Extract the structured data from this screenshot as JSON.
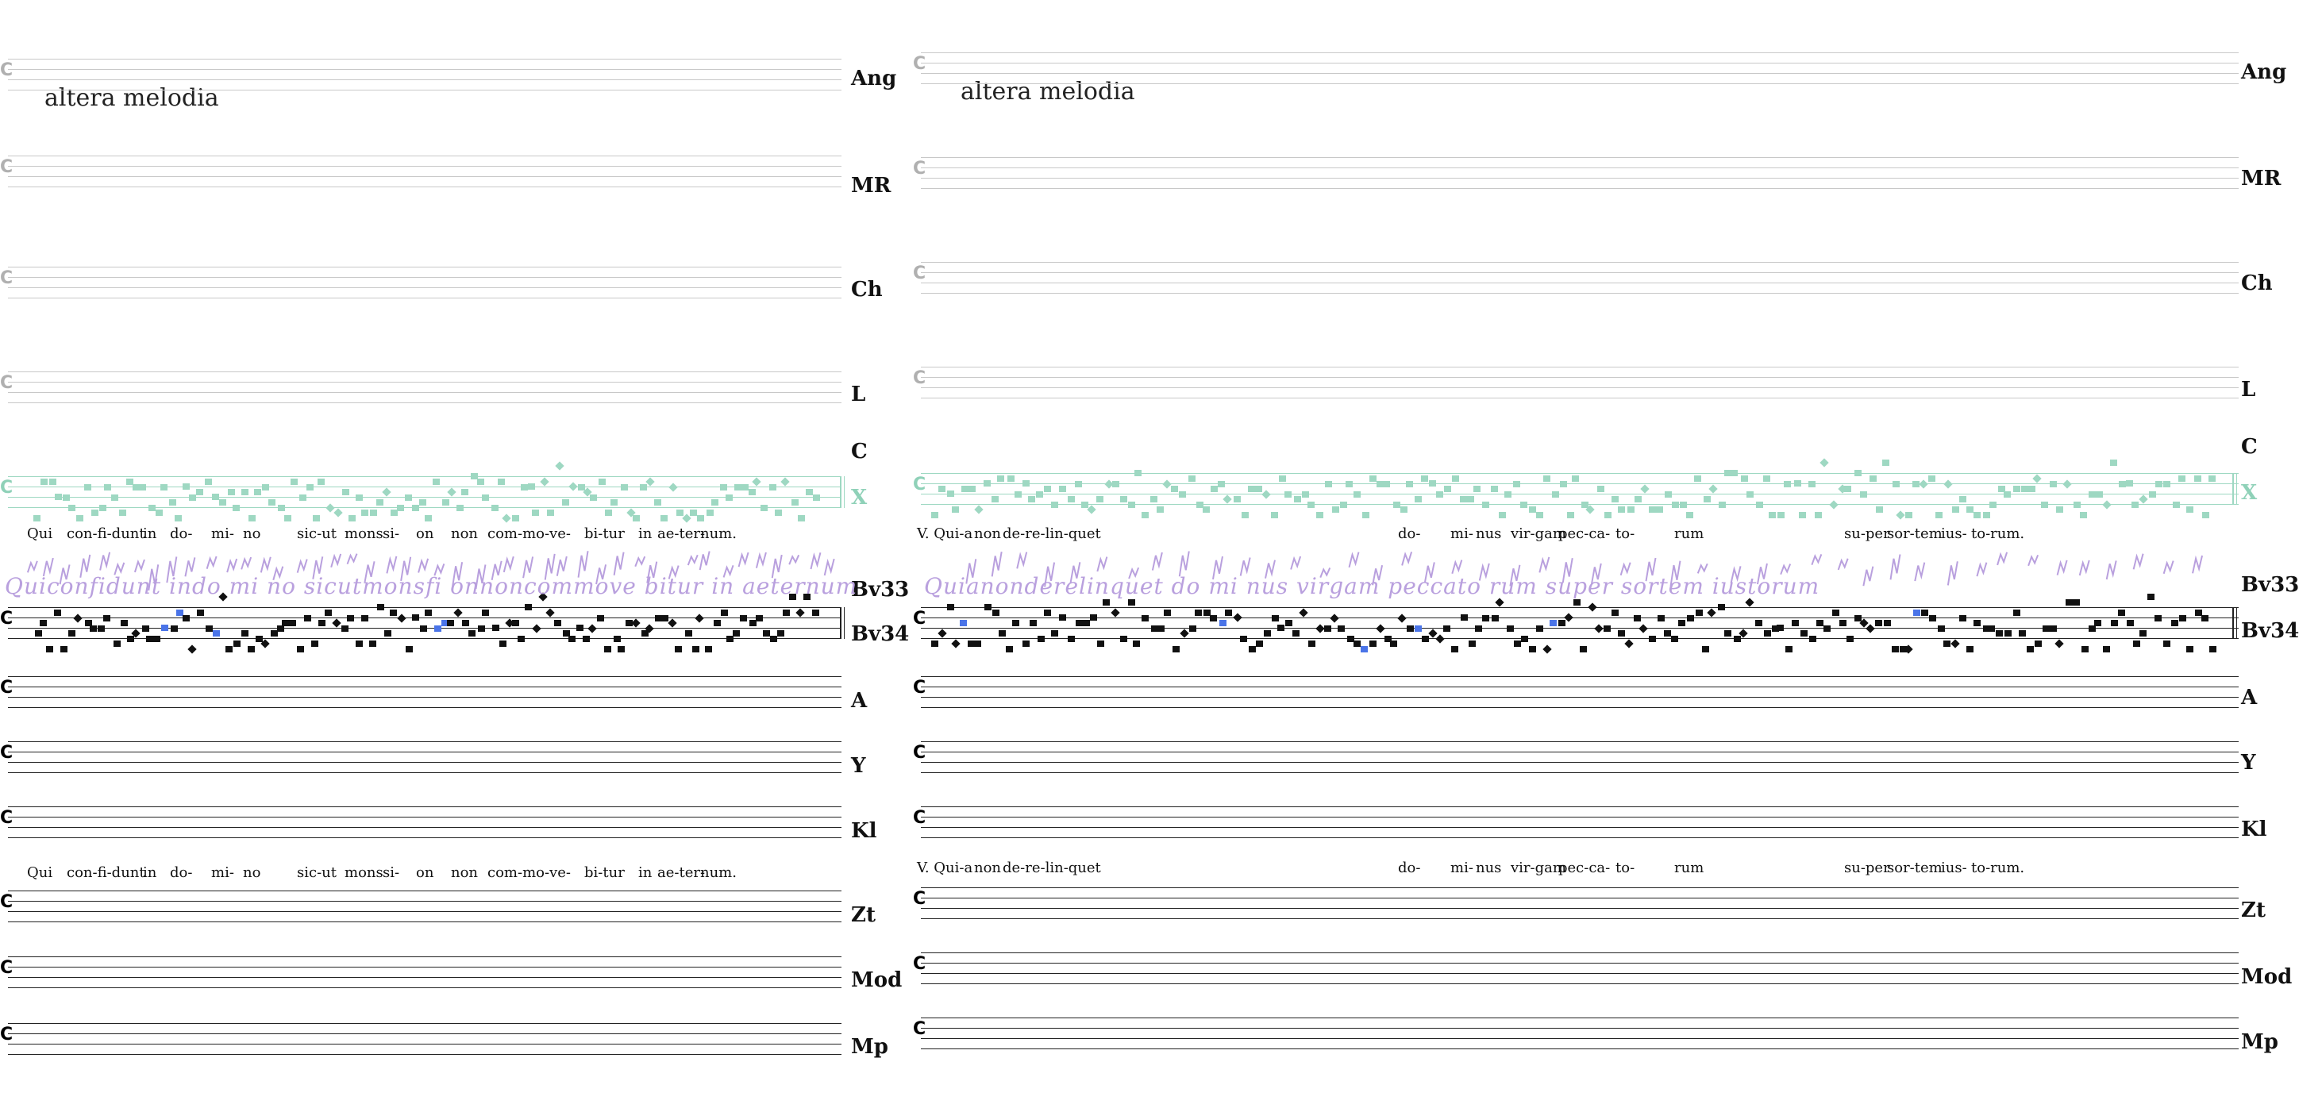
{
  "alt_label": "altera melodia",
  "sigla": [
    "Ang",
    "MR",
    "Ch",
    "L",
    "C",
    "X",
    "Bv33",
    "Bv34",
    "A",
    "Y",
    "Kl",
    "Zt",
    "Mod",
    "Mp"
  ],
  "left": {
    "lyrics": [
      "Qui",
      "con-fi-dunt",
      "in",
      "do-",
      "mi-",
      "no",
      "sic-ut",
      "mons",
      "si-",
      "on",
      "non",
      "com-mo-ve-",
      "bi-tur",
      "in",
      "ae-ter-",
      "num."
    ],
    "ms_text": "Quiconfidunt indo mi no sicutmonsfi onnoncommove bitur in aeternum"
  },
  "right": {
    "lyrics": [
      "V. Qui-a",
      "non",
      "de-re-lin-quet",
      "do-",
      "mi-",
      "nus",
      "vir-gam",
      "pec-ca-",
      "to-",
      "rum",
      "su-per",
      "sor-tem",
      "ius-",
      "to-rum."
    ],
    "ms_text": "Quianonderelinquet do mi nus virgam peccato rum super sortem iustorum"
  },
  "colors": {
    "staff_light": "#c8c8c8",
    "staff_dark": "#222222",
    "green": "#9ed8c2",
    "purple": "#b9a0de",
    "blue": "#4a74e8"
  }
}
